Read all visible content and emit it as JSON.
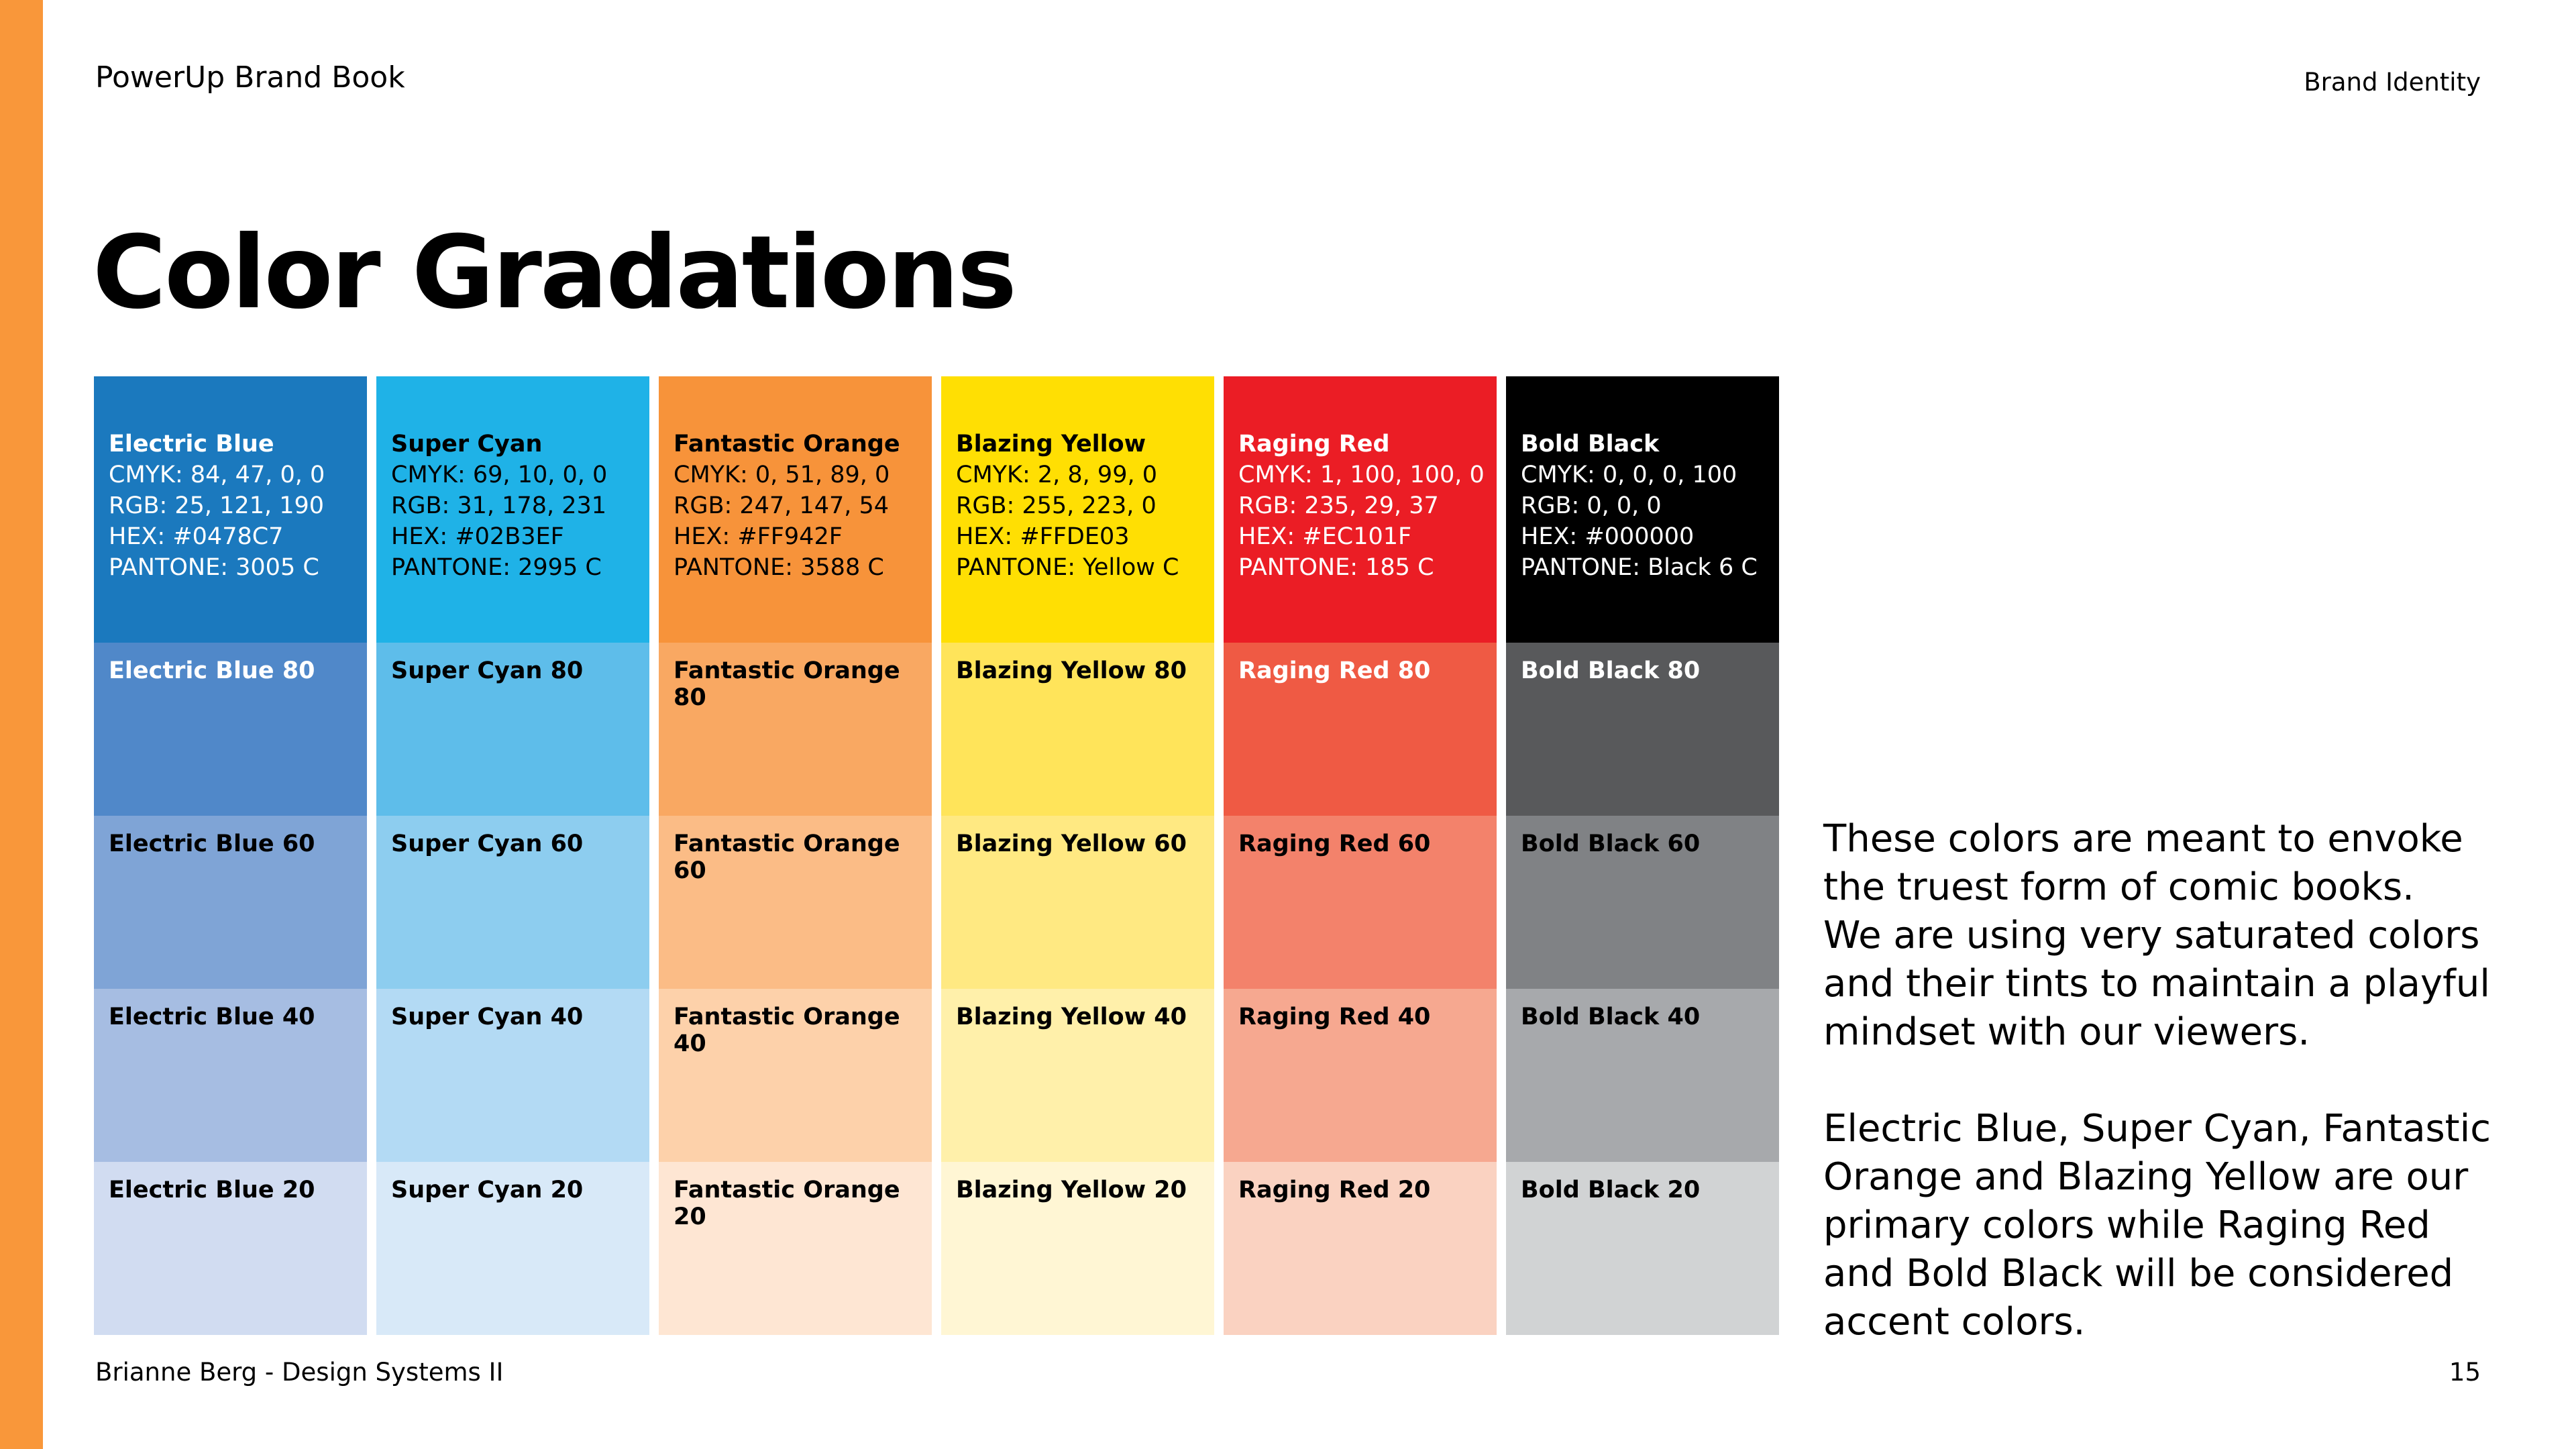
{
  "header": {
    "title": "PowerUp Brand Book",
    "section": "Brand Identity"
  },
  "title": "Color Gradations",
  "swatches": [
    {
      "name": "Electric Blue",
      "specs": [
        "CMYK: 84, 47, 0, 0",
        "RGB: 25, 121, 190",
        "HEX: #0478C7",
        "PANTONE: 3005 C"
      ],
      "tints": [
        "Electric Blue 80",
        "Electric Blue 60",
        "Electric Blue 40",
        "Electric Blue 20"
      ],
      "colors": [
        "#1B79BE",
        "#5088C9",
        "#7FA4D6",
        "#A6BDE2",
        "#D1DCF1"
      ]
    },
    {
      "name": "Super Cyan",
      "specs": [
        "CMYK: 69, 10, 0, 0",
        "RGB: 31, 178, 231",
        "HEX: #02B3EF",
        "PANTONE: 2995 C"
      ],
      "tints": [
        "Super Cyan 80",
        "Super Cyan 60",
        "Super Cyan 40",
        "Super Cyan 20"
      ],
      "colors": [
        "#1FB2E7",
        "#5EBDEA",
        "#8DCDEF",
        "#B3DAF4",
        "#D8E9F8"
      ]
    },
    {
      "name": "Fantastic Orange",
      "specs": [
        "CMYK: 0, 51, 89, 0",
        "RGB: 247, 147, 54",
        "HEX: #FF942F",
        "PANTONE: 3588 C"
      ],
      "tints": [
        "Fantastic Orange 80",
        "Fantastic Orange 60",
        "Fantastic Orange 40",
        "Fantastic Orange 20"
      ],
      "colors": [
        "#F7933A",
        "#F9A862",
        "#FBBC86",
        "#FDD1AA",
        "#FEE6D3"
      ]
    },
    {
      "name": "Blazing Yellow",
      "specs": [
        "CMYK: 2, 8, 99, 0",
        "RGB: 255, 223, 0",
        "HEX: #FFDE03",
        "PANTONE: Yellow C"
      ],
      "tints": [
        "Blazing Yellow 80",
        "Blazing Yellow 60",
        "Blazing Yellow 40",
        "Blazing Yellow 20"
      ],
      "colors": [
        "#FFDF03",
        "#FFE45A",
        "#FFE982",
        "#FFF0AA",
        "#FFF6D4"
      ]
    },
    {
      "name": "Raging Red",
      "specs": [
        "CMYK: 1, 100, 100, 0",
        "RGB: 235, 29, 37",
        "HEX: #EC101F",
        "PANTONE: 185 C"
      ],
      "tints": [
        "Raging Red 80",
        "Raging Red 60",
        "Raging Red 40",
        "Raging Red 20"
      ],
      "colors": [
        "#EB1D25",
        "#EF5A44",
        "#F3826B",
        "#F6A890",
        "#FAD2C1"
      ]
    },
    {
      "name": "Bold Black",
      "specs": [
        "CMYK: 0, 0, 0, 100",
        "RGB: 0, 0, 0",
        "HEX: #000000",
        "PANTONE: Black 6 C"
      ],
      "tints": [
        "Bold Black 80",
        "Bold Black 60",
        "Bold Black 40",
        "Bold Black 20"
      ],
      "colors": [
        "#000000",
        "#58595B",
        "#808285",
        "#A7A9AC",
        "#D1D3D4"
      ]
    }
  ],
  "paragraphs": [
    [
      "These colors are meant to envoke",
      "the truest form of comic books.",
      "We are using very saturated colors",
      "and their tints to maintain a playful",
      "mindset with our viewers."
    ],
    [
      "Electric Blue, Super Cyan, Fantastic",
      "Orange and Blazing Yellow are our",
      "primary colors while Raging Red",
      "and Bold Black will be considered",
      "accent colors."
    ]
  ],
  "footer": {
    "author": "Brianne Berg - Design Systems II",
    "page": "15"
  }
}
